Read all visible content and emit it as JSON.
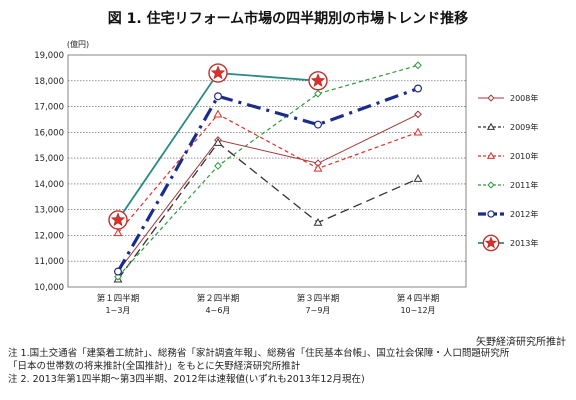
{
  "chart_data": {
    "type": "line",
    "title": "図 1. 住宅リフォーム市場の四半期別の市場トレンド推移",
    "unit_label": "(億円)",
    "ylim": [
      10000,
      19000
    ],
    "yticks": [
      "10,000",
      "11,000",
      "12,000",
      "13,000",
      "14,000",
      "15,000",
      "16,000",
      "17,000",
      "18,000",
      "19,000"
    ],
    "grid": true,
    "legend_position": "right",
    "categories": [
      {
        "line1": "第１四半期",
        "line2": "1~3月"
      },
      {
        "line1": "第２四半期",
        "line2": "4~6月"
      },
      {
        "line1": "第３四半期",
        "line2": "7~9月"
      },
      {
        "line1": "第４四半期",
        "line2": "10~12月"
      }
    ],
    "series": [
      {
        "name": "2008年",
        "values": [
          10600,
          15700,
          14800,
          16700
        ],
        "color": "#a0393b",
        "dash": "",
        "width": 1,
        "marker": "diamond"
      },
      {
        "name": "2009年",
        "values": [
          10300,
          15600,
          12500,
          14200
        ],
        "color": "#333333",
        "dash": "9,5",
        "width": 1.3,
        "marker": "triangle"
      },
      {
        "name": "2010年",
        "values": [
          12100,
          16700,
          14600,
          16000
        ],
        "color": "#e0302a",
        "dash": "4,3",
        "width": 1.2,
        "marker": "triangle"
      },
      {
        "name": "2011年",
        "values": [
          10400,
          14700,
          17500,
          18600
        ],
        "color": "#2e9a3a",
        "dash": "4,3",
        "width": 1.2,
        "marker": "diamond"
      },
      {
        "name": "2012年",
        "values": [
          10600,
          17400,
          16300,
          17700
        ],
        "color": "#1a2d8c",
        "dash": "14,6,3,6",
        "width": 3.2,
        "marker": "circle"
      },
      {
        "name": "2013年",
        "values": [
          12600,
          18300,
          18000,
          null
        ],
        "color": "#2a8a86",
        "dash": "",
        "width": 1.8,
        "marker": "star"
      }
    ]
  },
  "source": "矢野経済研究所推計",
  "notes": [
    "注 1.国土交通省「建築着工統計」、総務省「家計調査年報」、総務省「住民基本台帳」、国立社会保障・人口問題研究所",
    "「日本の世帯数の将来推計(全国推計)」をもとに矢野経済研究所推計",
    "注 2. 2013年第1四半期～第3四半期、2012年は速報値(いずれも2013年12月現在)"
  ]
}
